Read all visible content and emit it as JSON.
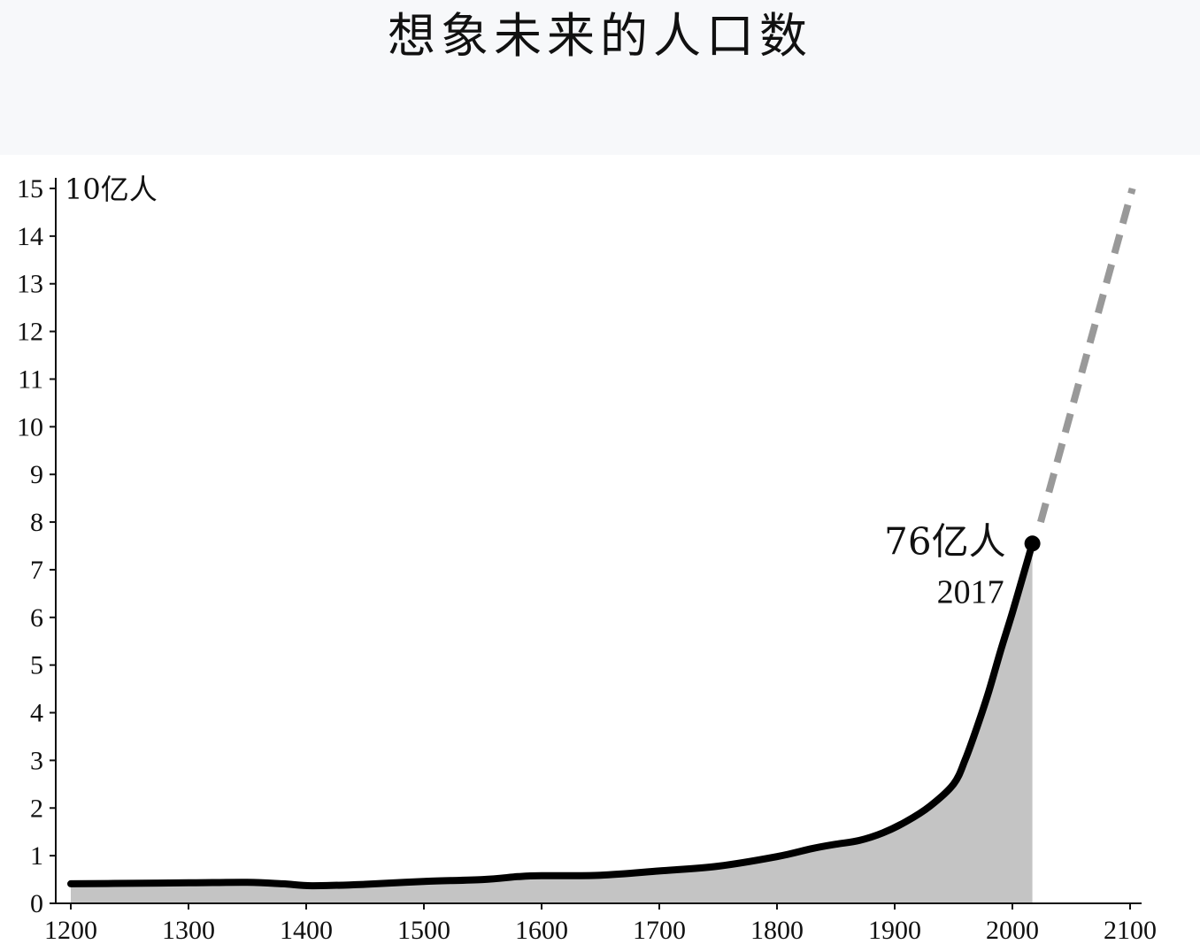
{
  "header": {
    "title": "想象未来的人口数"
  },
  "chart_data": {
    "type": "area",
    "title": "想象未来的人口数",
    "ylabel": "10亿人",
    "xlabel": "",
    "xlim": [
      1200,
      2100
    ],
    "ylim": [
      0,
      15
    ],
    "x_ticks": [
      1200,
      1300,
      1400,
      1500,
      1600,
      1700,
      1800,
      1900,
      2000,
      2100
    ],
    "y_ticks": [
      0,
      1,
      2,
      3,
      4,
      5,
      6,
      7,
      8,
      9,
      10,
      11,
      12,
      13,
      14,
      15
    ],
    "grid": false,
    "series": [
      {
        "style": "solid",
        "filled": true,
        "color": "#000000",
        "fill_color": "#c4c4c4",
        "points": [
          [
            1200,
            0.41
          ],
          [
            1250,
            0.42
          ],
          [
            1300,
            0.43
          ],
          [
            1350,
            0.44
          ],
          [
            1380,
            0.41
          ],
          [
            1405,
            0.37
          ],
          [
            1450,
            0.4
          ],
          [
            1500,
            0.46
          ],
          [
            1550,
            0.5
          ],
          [
            1580,
            0.56
          ],
          [
            1600,
            0.58
          ],
          [
            1650,
            0.59
          ],
          [
            1700,
            0.68
          ],
          [
            1750,
            0.78
          ],
          [
            1800,
            0.98
          ],
          [
            1830,
            1.15
          ],
          [
            1850,
            1.24
          ],
          [
            1870,
            1.32
          ],
          [
            1890,
            1.48
          ],
          [
            1910,
            1.72
          ],
          [
            1930,
            2.04
          ],
          [
            1950,
            2.5
          ],
          [
            1960,
            3.02
          ],
          [
            1970,
            3.7
          ],
          [
            1980,
            4.45
          ],
          [
            1990,
            5.3
          ],
          [
            2000,
            6.1
          ],
          [
            2010,
            6.95
          ],
          [
            2017,
            7.55
          ]
        ]
      },
      {
        "style": "dashed",
        "filled": false,
        "color": "#999999",
        "points": [
          [
            2024,
            8.0
          ],
          [
            2102,
            15.0
          ]
        ]
      }
    ],
    "annotation": {
      "point": [
        2017,
        7.55
      ],
      "value_label": "76亿人",
      "year_label": "2017"
    }
  }
}
